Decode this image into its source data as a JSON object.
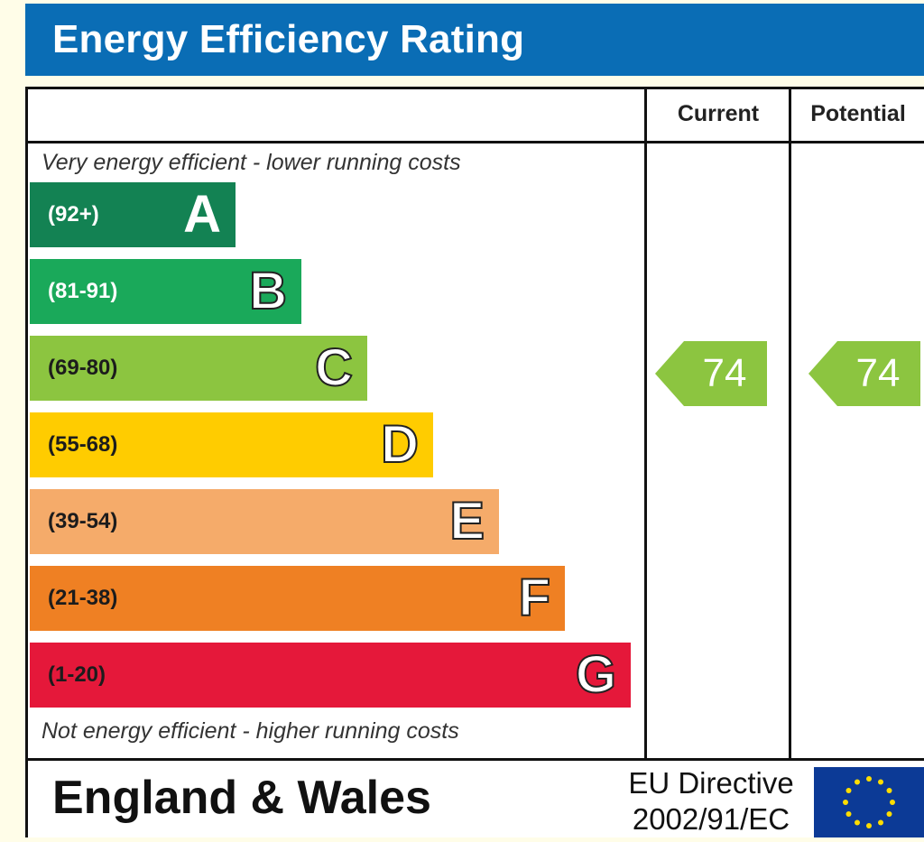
{
  "header": {
    "title": "Energy Efficiency Rating"
  },
  "columns": {
    "current": "Current",
    "potential": "Potential"
  },
  "captions": {
    "top": "Very energy efficient - lower running costs",
    "bottom": "Not energy efficient - higher running costs"
  },
  "chart_data": {
    "type": "bar",
    "title": "Energy Efficiency Rating",
    "categories": [
      "A",
      "B",
      "C",
      "D",
      "E",
      "F",
      "G"
    ],
    "bands": [
      {
        "letter": "A",
        "range": "(92+)",
        "color": "#138253"
      },
      {
        "letter": "B",
        "range": "(81-91)",
        "color": "#1aa95a"
      },
      {
        "letter": "C",
        "range": "(69-80)",
        "color": "#8cc540"
      },
      {
        "letter": "D",
        "range": "(55-68)",
        "color": "#ffcc00"
      },
      {
        "letter": "E",
        "range": "(39-54)",
        "color": "#f5ab6a"
      },
      {
        "letter": "F",
        "range": "(21-38)",
        "color": "#ef8023"
      },
      {
        "letter": "G",
        "range": "(1-20)",
        "color": "#e5183a"
      }
    ],
    "current": {
      "value": 74,
      "band": "C",
      "color": "#8cc540"
    },
    "potential": {
      "value": 74,
      "band": "C",
      "color": "#8cc540"
    }
  },
  "footer": {
    "region": "England & Wales",
    "directive_line1": "EU Directive",
    "directive_line2": "2002/91/EC"
  }
}
